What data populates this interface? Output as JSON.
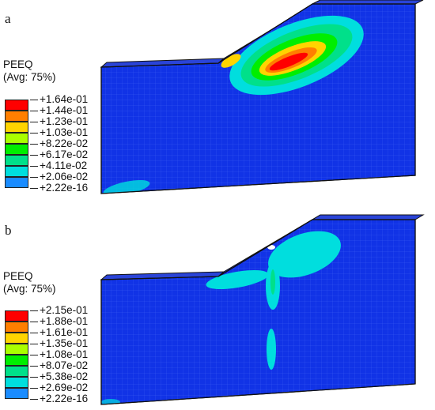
{
  "panels": [
    {
      "letter": "a",
      "legend_title_line1": "PEEQ",
      "legend_title_line2": "(Avg: 75%)",
      "legend_values": [
        "+1.64e-01",
        "+1.44e-01",
        "+1.23e-01",
        "+1.03e-01",
        "+8.22e-02",
        "+6.17e-02",
        "+4.11e-02",
        "+2.06e-02",
        "+2.22e-16"
      ]
    },
    {
      "letter": "b",
      "legend_title_line1": "PEEQ",
      "legend_title_line2": "(Avg: 75%)",
      "legend_values": [
        "+2.15e-01",
        "+1.88e-01",
        "+1.61e-01",
        "+1.35e-01",
        "+1.08e-01",
        "+8.07e-02",
        "+5.38e-02",
        "+2.69e-02",
        "+2.22e-16"
      ]
    }
  ],
  "colors": {
    "contour_scale": [
      "#ff0000",
      "#ff7f00",
      "#ffd400",
      "#aaff00",
      "#00ee00",
      "#00e08a",
      "#00dede",
      "#1a8cff",
      "#0022ee"
    ],
    "base_mesh": "#1133e6",
    "mesh_line": "#2b4ff0"
  }
}
